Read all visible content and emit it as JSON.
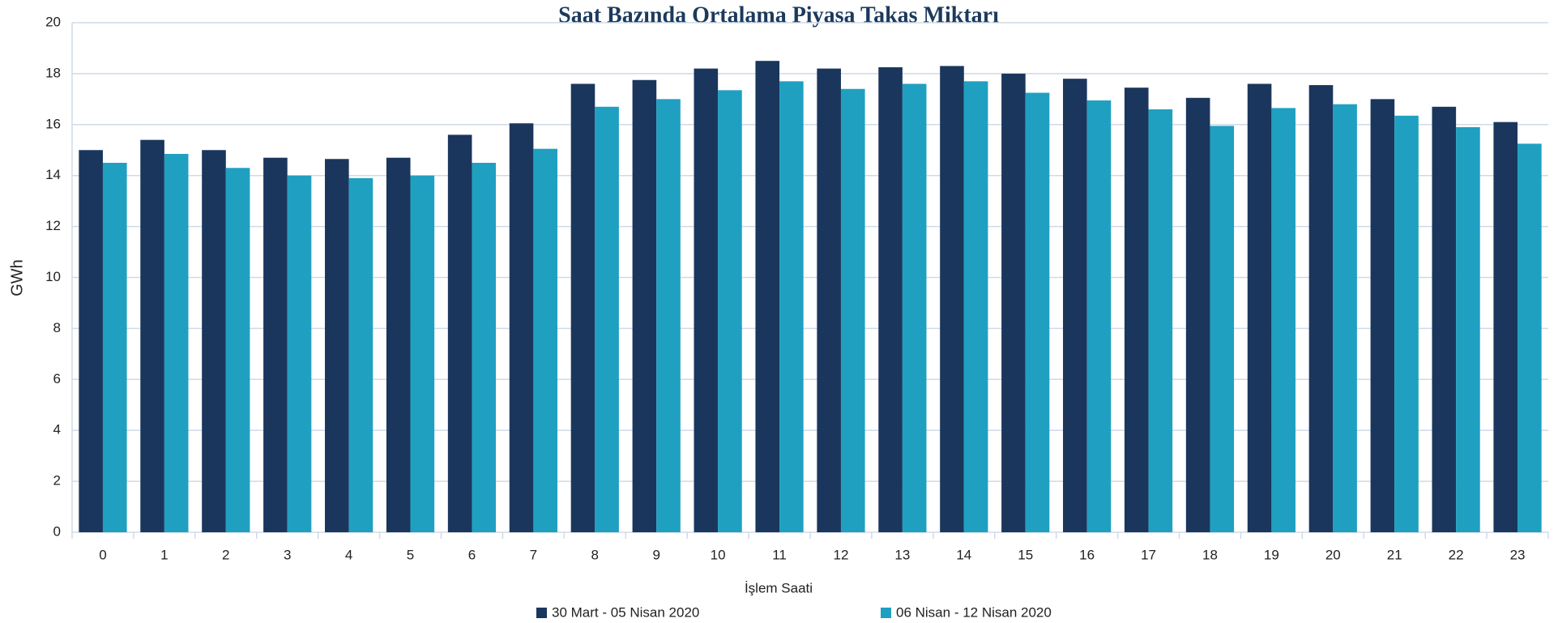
{
  "chart_data": {
    "type": "bar",
    "title": "Saat Bazında Ortalama Piyasa Takas Miktarı",
    "x_label": "İşlem Saati",
    "y_label": "GWh",
    "categories": [
      "0",
      "1",
      "2",
      "3",
      "4",
      "5",
      "6",
      "7",
      "8",
      "9",
      "10",
      "11",
      "12",
      "13",
      "14",
      "15",
      "16",
      "17",
      "18",
      "19",
      "20",
      "21",
      "22",
      "23"
    ],
    "series": [
      {
        "name": "30 Mart - 05 Nisan 2020",
        "color": "#1b365d",
        "values": [
          15.0,
          15.4,
          15.0,
          14.7,
          14.65,
          14.7,
          15.6,
          16.05,
          17.6,
          17.75,
          18.2,
          18.5,
          18.2,
          18.25,
          18.3,
          18.0,
          17.8,
          17.45,
          17.05,
          17.6,
          17.55,
          17.0,
          16.7,
          16.1
        ]
      },
      {
        "name": "06 Nisan - 12 Nisan 2020",
        "color": "#1fa0c1",
        "values": [
          14.5,
          14.85,
          14.3,
          14.0,
          13.9,
          14.0,
          14.5,
          15.05,
          16.7,
          17.0,
          17.35,
          17.7,
          17.4,
          17.6,
          17.7,
          17.25,
          16.95,
          16.6,
          15.95,
          16.65,
          16.8,
          16.35,
          15.9,
          15.25
        ]
      }
    ],
    "ylim": [
      0,
      20
    ],
    "yticks": [
      0,
      2,
      4,
      6,
      8,
      10,
      12,
      14,
      16,
      18,
      20
    ],
    "grid": true,
    "legend": "bottom"
  }
}
